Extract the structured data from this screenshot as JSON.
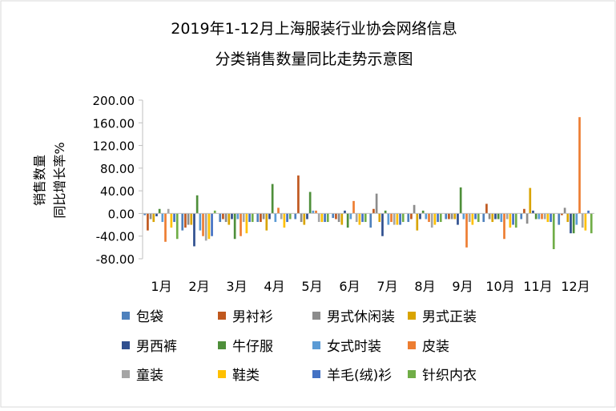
{
  "chart_data": {
    "type": "bar",
    "title": "2019年1-12月上海服装行业协会网络信息",
    "subtitle": "分类销售数量同比走势示意图",
    "ylabel_line1": "销售数量",
    "ylabel_line2": "同比增长率%",
    "ylim": [
      -80,
      200
    ],
    "yticks": [
      200,
      160,
      120,
      80,
      40,
      0,
      -40,
      -80
    ],
    "ytick_labels": [
      "200.00",
      "160.00",
      "120.00",
      "80.00",
      "40.00",
      "0.00",
      "-40.00",
      "-80.00"
    ],
    "legend_position": "bottom",
    "grid": false,
    "categories": [
      "1月",
      "2月",
      "3月",
      "4月",
      "5月",
      "6月",
      "7月",
      "8月",
      "9月",
      "10月",
      "11月",
      "12月"
    ],
    "series": [
      {
        "name": "包袋",
        "color": "#4e81bd",
        "values": [
          -3,
          -30,
          -15,
          -15,
          -10,
          -8,
          -25,
          -15,
          -10,
          -15,
          -10,
          -20
        ]
      },
      {
        "name": "男衬衫",
        "color": "#c0581e",
        "values": [
          -30,
          -25,
          -10,
          -15,
          67,
          -10,
          8,
          -10,
          -10,
          17,
          8,
          -3
        ]
      },
      {
        "name": "男式休闲装",
        "color": "#8c8c8c",
        "values": [
          -10,
          -20,
          -15,
          -10,
          -15,
          -15,
          35,
          15,
          -10,
          -10,
          -18,
          10
        ]
      },
      {
        "name": "男式正装",
        "color": "#d9a400",
        "values": [
          -15,
          -20,
          -20,
          -30,
          -20,
          -20,
          -15,
          -30,
          -10,
          -15,
          45,
          -15
        ]
      },
      {
        "name": "男西裤",
        "color": "#2f4f8f",
        "values": [
          -5,
          -58,
          -10,
          -10,
          -10,
          5,
          -40,
          -10,
          -20,
          -10,
          5,
          -35
        ]
      },
      {
        "name": "牛仔服",
        "color": "#4e8f3a",
        "values": [
          8,
          32,
          -45,
          52,
          38,
          -25,
          5,
          5,
          46,
          -10,
          -10,
          -35
        ]
      },
      {
        "name": "女式时装",
        "color": "#5b9bd5",
        "values": [
          -15,
          -30,
          -10,
          -15,
          5,
          -10,
          -20,
          -10,
          -10,
          -15,
          -10,
          -20
        ]
      },
      {
        "name": "皮装",
        "color": "#ed7d31",
        "values": [
          -50,
          -40,
          -40,
          10,
          5,
          22,
          -15,
          -15,
          -60,
          -45,
          -10,
          170
        ]
      },
      {
        "name": "童装",
        "color": "#a5a5a5",
        "values": [
          8,
          -48,
          -15,
          -10,
          -15,
          -15,
          -20,
          -25,
          -15,
          -10,
          -10,
          -25
        ]
      },
      {
        "name": "鞋类",
        "color": "#ffc000",
        "values": [
          -25,
          -45,
          -35,
          -25,
          -15,
          -20,
          -20,
          -20,
          -20,
          -25,
          -15,
          -30
        ]
      },
      {
        "name": "羊毛(绒)衫",
        "color": "#4472c4",
        "values": [
          -15,
          -40,
          -15,
          -15,
          -15,
          -15,
          -20,
          -15,
          -10,
          -20,
          -15,
          5
        ]
      },
      {
        "name": "针织内衣",
        "color": "#70ad47",
        "values": [
          -45,
          5,
          -15,
          -10,
          -15,
          -15,
          -15,
          -15,
          -15,
          -25,
          -63,
          -35
        ]
      }
    ]
  }
}
